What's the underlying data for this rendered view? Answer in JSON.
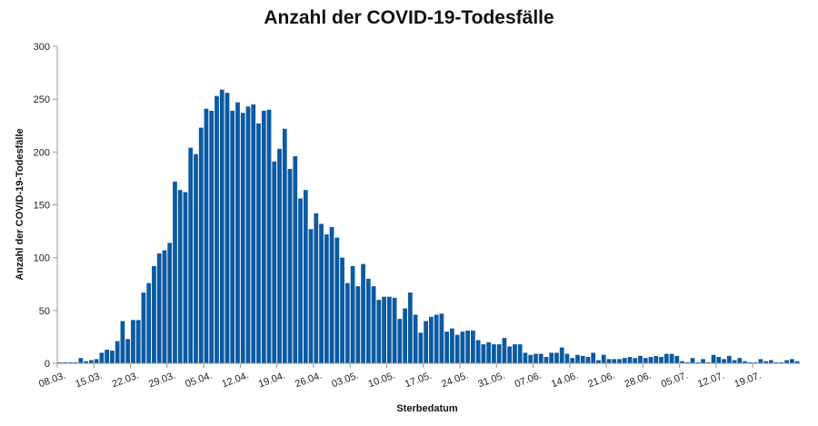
{
  "chart_data": {
    "type": "bar",
    "title": "Anzahl der COVID-19-Todesfälle",
    "xlabel": "Sterbedatum",
    "ylabel": "Anzahl der COVID-19-Todesfälle",
    "ylim": [
      0,
      300
    ],
    "yticks": [
      0,
      50,
      100,
      150,
      200,
      250,
      300
    ],
    "bar_color": "#0b5aa3",
    "grid": false,
    "legend": "none",
    "start_label": "08.03.",
    "xtick_labels": [
      "08.03.",
      "15.03.",
      "22.03.",
      "29.03.",
      "05.04.",
      "12.04.",
      "19.04.",
      "26.04.",
      "03.05.",
      "10.05.",
      "17.05.",
      "24.05.",
      "31.05.",
      "07.06.",
      "14.06.",
      "21.06.",
      "28.06.",
      "05.07.",
      "12.07.",
      "19.07."
    ],
    "values": [
      1,
      1,
      1,
      1,
      5,
      2,
      3,
      4,
      10,
      13,
      12,
      21,
      40,
      23,
      41,
      41,
      67,
      76,
      92,
      104,
      107,
      114,
      172,
      164,
      162,
      204,
      198,
      223,
      241,
      239,
      253,
      259,
      256,
      239,
      247,
      237,
      243,
      245,
      227,
      239,
      240,
      191,
      203,
      222,
      184,
      196,
      156,
      164,
      127,
      142,
      132,
      122,
      129,
      119,
      100,
      76,
      92,
      73,
      94,
      80,
      73,
      60,
      63,
      63,
      62,
      42,
      52,
      67,
      46,
      29,
      40,
      44,
      46,
      47,
      30,
      33,
      27,
      30,
      31,
      31,
      22,
      18,
      20,
      18,
      18,
      24,
      16,
      18,
      18,
      10,
      8,
      9,
      9,
      6,
      10,
      10,
      15,
      9,
      5,
      8,
      7,
      6,
      10,
      3,
      8,
      4,
      4,
      4,
      5,
      6,
      5,
      7,
      5,
      6,
      7,
      6,
      9,
      9,
      7,
      2,
      1,
      5,
      1,
      4,
      1,
      8,
      6,
      4,
      7,
      3,
      5,
      2,
      1,
      1,
      4,
      2,
      3,
      1,
      1,
      3,
      4,
      2
    ]
  }
}
